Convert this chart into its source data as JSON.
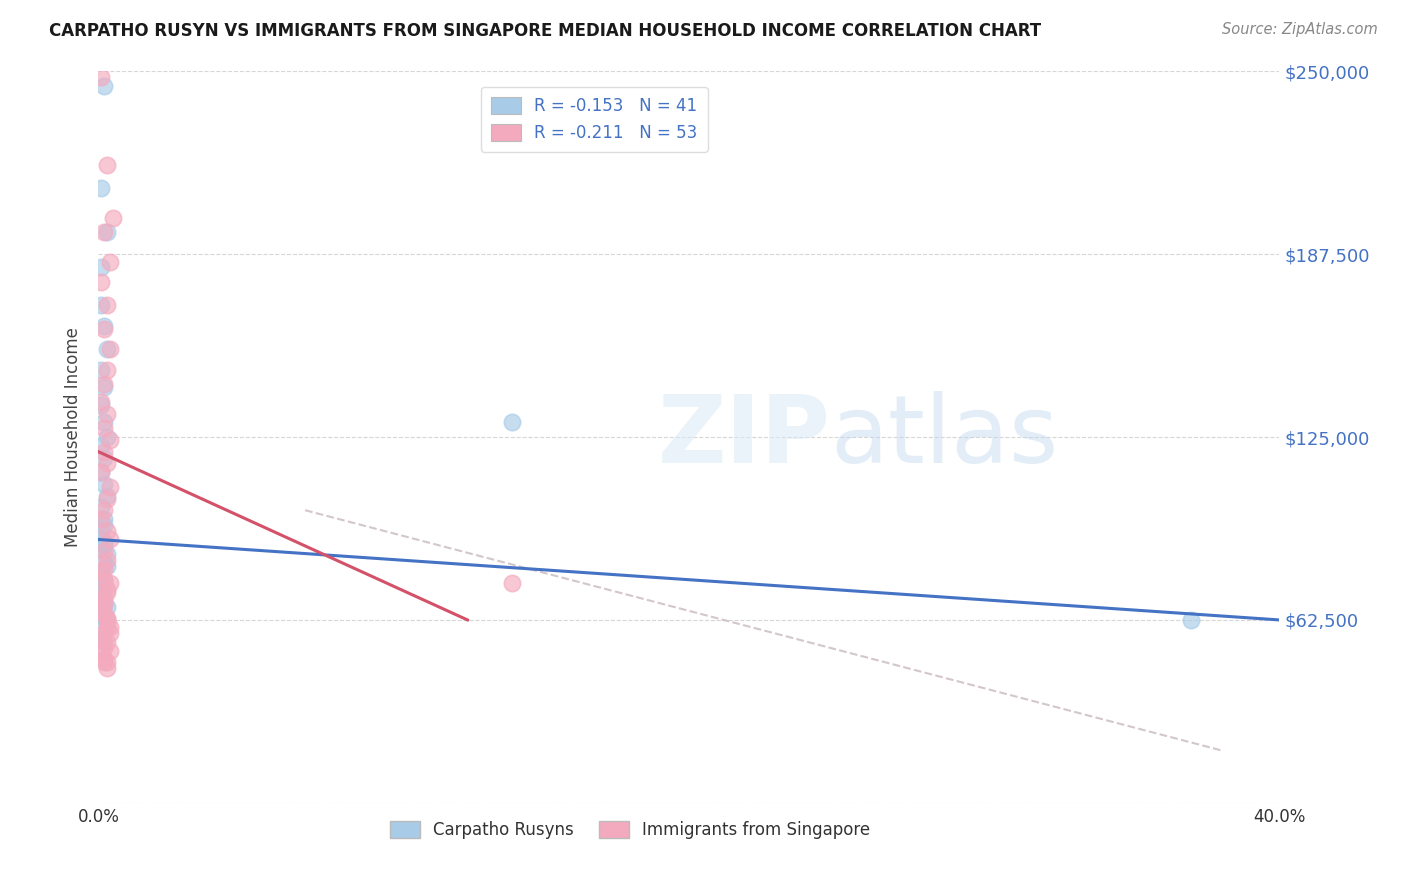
{
  "title": "CARPATHO RUSYN VS IMMIGRANTS FROM SINGAPORE MEDIAN HOUSEHOLD INCOME CORRELATION CHART",
  "source": "Source: ZipAtlas.com",
  "ylabel": "Median Household Income",
  "xlim": [
    0,
    0.4
  ],
  "ylim": [
    0,
    250000
  ],
  "yticks": [
    0,
    62500,
    125000,
    187500,
    250000
  ],
  "ytick_labels": [
    "",
    "$62,500",
    "$125,000",
    "$187,500",
    "$250,000"
  ],
  "xticks": [
    0.0,
    0.08,
    0.16,
    0.24,
    0.32,
    0.4
  ],
  "xtick_labels": [
    "0.0%",
    "",
    "",
    "",
    "",
    "40.0%"
  ],
  "legend1_label": "R = -0.153   N = 41",
  "legend2_label": "R = -0.211   N = 53",
  "legend_bottom1": "Carpatho Rusyns",
  "legend_bottom2": "Immigrants from Singapore",
  "blue_color": "#A8CBE8",
  "pink_color": "#F4AABE",
  "blue_line_color": "#4472C4",
  "pink_line_color": "#D4516A",
  "gray_dash_color": "#C8B8C0",
  "background_color": "#FFFFFF",
  "blue_R": -0.153,
  "blue_N": 41,
  "pink_R": -0.211,
  "pink_N": 53,
  "blue_line_x": [
    0.0,
    0.4
  ],
  "blue_line_y": [
    90000,
    62500
  ],
  "pink_line_x": [
    0.0,
    0.125
  ],
  "pink_line_y": [
    120000,
    62500
  ],
  "gray_line_x": [
    0.07,
    0.38
  ],
  "gray_line_y": [
    100000,
    18000
  ],
  "blue_pts_x": [
    0.002,
    0.001,
    0.003,
    0.001,
    0.001,
    0.002,
    0.003,
    0.001,
    0.002,
    0.001,
    0.002,
    0.003,
    0.001,
    0.002,
    0.001,
    0.002,
    0.003,
    0.001,
    0.002,
    0.001,
    0.002,
    0.003,
    0.002,
    0.001,
    0.002,
    0.001,
    0.002,
    0.003,
    0.001,
    0.002,
    0.002,
    0.003,
    0.001,
    0.002,
    0.003,
    0.001,
    0.002,
    0.14,
    0.001,
    0.37,
    0.001
  ],
  "blue_pts_y": [
    245000,
    210000,
    195000,
    183000,
    170000,
    163000,
    155000,
    148000,
    142000,
    136000,
    130000,
    125000,
    122000,
    118000,
    113000,
    109000,
    105000,
    101000,
    97000,
    93000,
    89000,
    85000,
    82000,
    79000,
    76000,
    73000,
    70000,
    67000,
    64000,
    95000,
    88000,
    81000,
    75000,
    68000,
    62000,
    59000,
    55000,
    130000,
    90000,
    62500,
    87000
  ],
  "pink_pts_x": [
    0.001,
    0.003,
    0.005,
    0.002,
    0.004,
    0.001,
    0.003,
    0.002,
    0.004,
    0.003,
    0.002,
    0.001,
    0.003,
    0.002,
    0.004,
    0.002,
    0.003,
    0.001,
    0.004,
    0.003,
    0.002,
    0.001,
    0.003,
    0.004,
    0.002,
    0.003,
    0.001,
    0.002,
    0.003,
    0.002,
    0.001,
    0.003,
    0.004,
    0.002,
    0.003,
    0.001,
    0.002,
    0.003,
    0.004,
    0.002,
    0.003,
    0.004,
    0.002,
    0.003,
    0.002,
    0.003,
    0.14,
    0.002,
    0.003,
    0.001,
    0.004,
    0.002,
    0.001
  ],
  "pink_pts_y": [
    248000,
    218000,
    200000,
    195000,
    185000,
    178000,
    170000,
    162000,
    155000,
    148000,
    143000,
    137000,
    133000,
    128000,
    124000,
    120000,
    116000,
    113000,
    108000,
    104000,
    100000,
    97000,
    93000,
    90000,
    86000,
    83000,
    79000,
    76000,
    73000,
    69000,
    66000,
    63000,
    60000,
    58000,
    55000,
    52000,
    49000,
    46000,
    75000,
    68000,
    62500,
    58000,
    53000,
    48000,
    80000,
    72000,
    75000,
    65000,
    60000,
    56000,
    52000,
    48000,
    70000
  ]
}
